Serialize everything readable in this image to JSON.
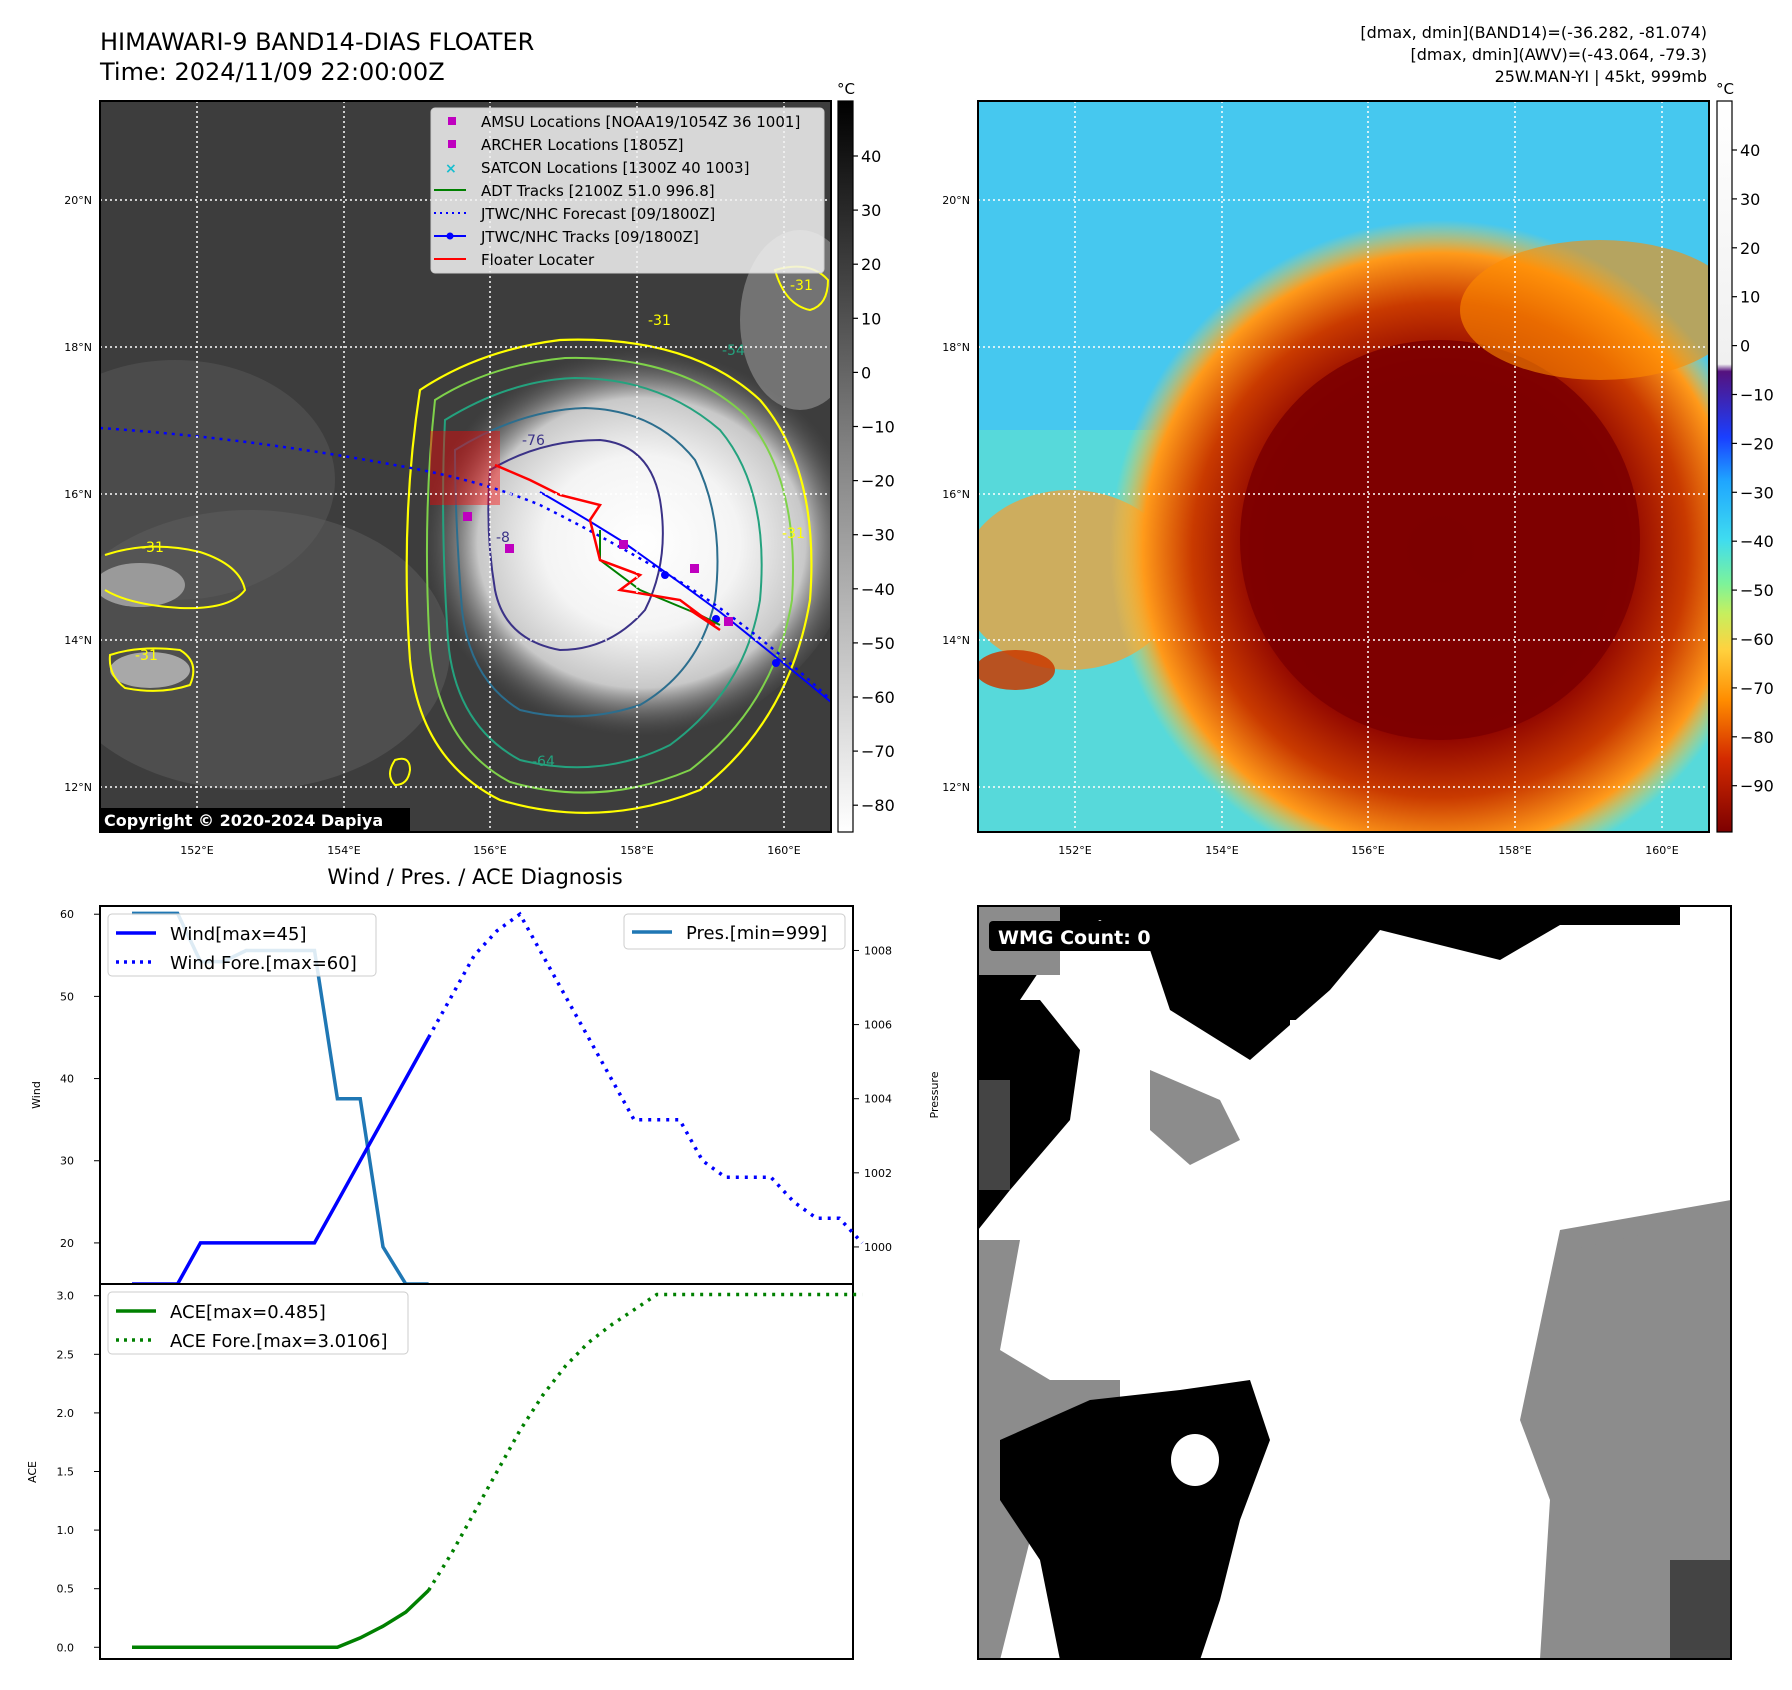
{
  "header": {
    "title_line1": "HIMAWARI-9 BAND14-DIAS FLOATER",
    "title_line2": "Time: 2024/11/09 22:00:00Z",
    "info_line1": "[dmax, dmin](BAND14)=(-36.282, -81.074)",
    "info_line2": "[dmax, dmin](AWV)=(-43.064, -79.3)",
    "info_line3": "25W.MAN-YI | 45kt, 999mb"
  },
  "maps": {
    "lat_labels": [
      "20°N",
      "18°N",
      "16°N",
      "14°N",
      "12°N"
    ],
    "lon_labels": [
      "152°E",
      "154°E",
      "156°E",
      "158°E",
      "160°E"
    ],
    "copyright": "Copyright © 2020-2024 Dapiya",
    "contour_labels": [
      "-31",
      "-31",
      "-31",
      "-31",
      "-54",
      "-76",
      "-64",
      "-8",
      "-31"
    ],
    "legend": [
      {
        "label": "AMSU Locations [NOAA19/1054Z 36 1001]",
        "color": "#bf00bf"
      },
      {
        "label": "ARCHER Locations [1805Z]",
        "color": "#bf00bf"
      },
      {
        "label": "SATCON Locations [1300Z 40 1003]",
        "color": "#17becf"
      },
      {
        "label": "ADT Tracks [2100Z 51.0 996.8]",
        "color": "#008000"
      },
      {
        "label": "JTWC/NHC Forecast [09/1800Z]",
        "color": "#0000ff"
      },
      {
        "label": "JTWC/NHC Tracks [09/1800Z]",
        "color": "#0000ff"
      },
      {
        "label": "Floater Locater",
        "color": "#ff0000"
      }
    ],
    "cbar1": {
      "unit": "°C",
      "ticks": [
        "40",
        "30",
        "20",
        "10",
        "0",
        "−10",
        "−20",
        "−30",
        "−40",
        "−50",
        "−60",
        "−70",
        "−80"
      ]
    },
    "cbar2": {
      "unit": "°C",
      "ticks": [
        "40",
        "30",
        "20",
        "10",
        "0",
        "−10",
        "−20",
        "−30",
        "−40",
        "−50",
        "−60",
        "−70",
        "−80",
        "−90"
      ]
    }
  },
  "chart_data": [
    {
      "type": "line",
      "title": "Wind / Pres. / ACE Diagnosis",
      "ylabel": "Wind",
      "ylabel_right": "Pressure",
      "ylim": [
        15,
        61
      ],
      "ylim_right": [
        999,
        1009.2
      ],
      "yticks": [
        "60",
        "50",
        "40",
        "30",
        "20"
      ],
      "yticks_right": [
        "1008",
        "1006",
        "1004",
        "1002",
        "1000"
      ],
      "xlim": [
        0,
        33
      ],
      "x_wind": [
        0,
        2,
        3,
        4,
        5,
        6,
        7,
        8,
        9,
        10,
        11,
        12,
        13
      ],
      "wind": [
        15,
        15,
        20,
        20,
        20,
        20,
        20,
        20,
        25,
        30,
        35,
        40,
        45
      ],
      "x_wind_fore": [
        13,
        14,
        15,
        16,
        17,
        18,
        19,
        20,
        21,
        22,
        23,
        24,
        25,
        26,
        27,
        28,
        29,
        30,
        31,
        32
      ],
      "wind_fore": [
        45,
        50,
        55,
        58,
        60,
        55,
        50,
        45,
        40,
        35,
        35,
        35,
        30,
        28,
        28,
        28,
        25,
        23,
        23,
        20
      ],
      "x_pres": [
        0,
        1,
        2,
        3,
        4,
        5,
        6,
        7,
        8,
        9,
        10,
        11,
        12,
        13
      ],
      "pressure": [
        1009,
        1009,
        1009,
        1007.7,
        1007.7,
        1008,
        1008,
        1008,
        1008,
        1004,
        1004,
        1000,
        999,
        999
      ],
      "legend": [
        "Wind[max=45]",
        "Wind Fore.[max=60]",
        "Pres.[min=999]"
      ]
    },
    {
      "type": "line",
      "ylabel": "ACE",
      "ylim": [
        -0.1,
        3.1
      ],
      "yticks": [
        "3.0",
        "2.5",
        "2.0",
        "1.5",
        "1.0",
        "0.5",
        "0.0"
      ],
      "xlim": [
        0,
        33
      ],
      "x_ace": [
        0,
        2,
        4,
        6,
        8,
        9,
        10,
        11,
        12,
        13
      ],
      "ace": [
        0,
        0,
        0,
        0,
        0,
        0,
        0.08,
        0.18,
        0.3,
        0.485
      ],
      "x_ace_fore": [
        13,
        14,
        15,
        16,
        17,
        18,
        19,
        20,
        21,
        22,
        23,
        24,
        25,
        26,
        27,
        28,
        29,
        30,
        31,
        32
      ],
      "ace_fore": [
        0.485,
        0.8,
        1.15,
        1.5,
        1.85,
        2.15,
        2.4,
        2.6,
        2.75,
        2.88,
        3.01,
        3.01,
        3.01,
        3.01,
        3.01,
        3.01,
        3.01,
        3.01,
        3.01,
        3.01
      ],
      "legend": [
        "ACE[max=0.485]",
        "ACE Fore.[max=3.0106]"
      ]
    }
  ],
  "wmg": {
    "label": "WMG Count: 0"
  }
}
